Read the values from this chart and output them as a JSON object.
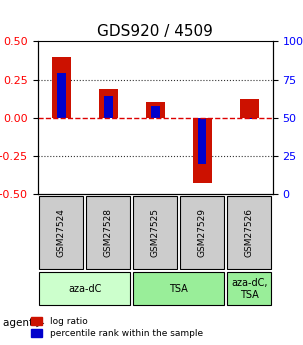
{
  "title": "GDS920 / 4509",
  "samples": [
    "GSM27524",
    "GSM27528",
    "GSM27525",
    "GSM27529",
    "GSM27526"
  ],
  "log_ratio": [
    0.4,
    0.19,
    0.1,
    -0.43,
    0.12
  ],
  "percentile": [
    0.29,
    0.14,
    0.08,
    -0.35,
    -0.02
  ],
  "percentile_pct": [
    79,
    64,
    58,
    20,
    49
  ],
  "bar_color_red": "#cc1100",
  "bar_color_blue": "#0000cc",
  "ylim": [
    -0.5,
    0.5
  ],
  "yticks_left": [
    -0.5,
    -0.25,
    0.0,
    0.25,
    0.5
  ],
  "yticks_right": [
    0,
    25,
    50,
    75,
    100
  ],
  "agent_groups": [
    {
      "label": "aza-dC",
      "span": [
        0,
        2
      ],
      "color": "#ccffcc"
    },
    {
      "label": "TSA",
      "span": [
        2,
        4
      ],
      "color": "#99ee99"
    },
    {
      "label": "aza-dC,\nTSA",
      "span": [
        4,
        5
      ],
      "color": "#99ee99"
    }
  ],
  "legend_red": "log ratio",
  "legend_blue": "percentile rank within the sample",
  "xlabel_agent": "agent",
  "hline_zero_color": "#dd0000",
  "hline_dotted_color": "#333333",
  "bar_width": 0.4
}
